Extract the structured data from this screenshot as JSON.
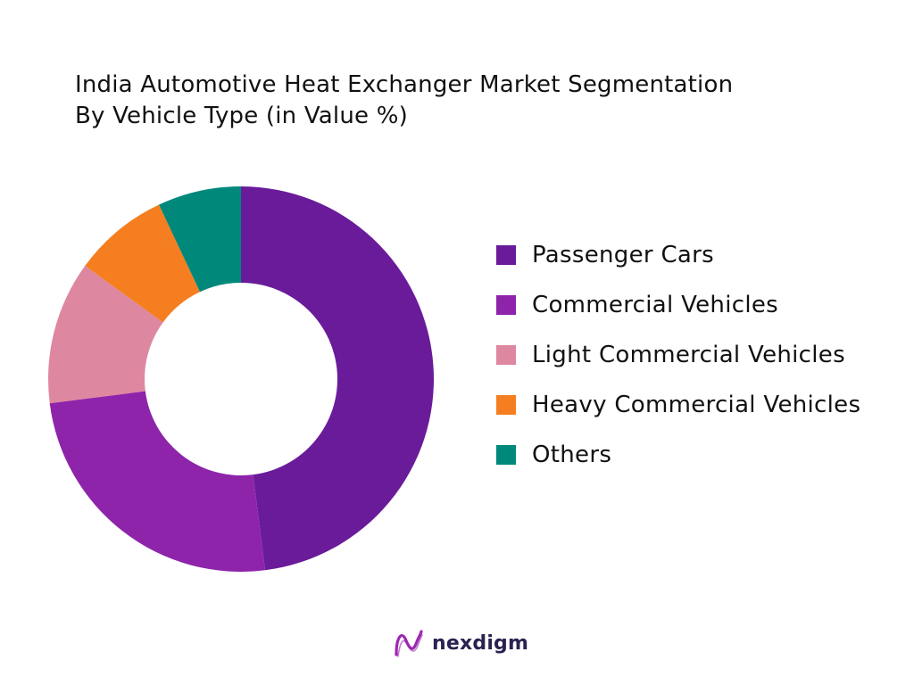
{
  "chart_data": {
    "type": "pie",
    "title": "India Automotive Heat Exchanger Market Segmentation",
    "subtitle": "By Vehicle Type (in Value %)",
    "legend_position": "right",
    "series": [
      {
        "name": "Passenger Cars",
        "value": 48,
        "color": "#6a1b9a"
      },
      {
        "name": "Commercial Vehicles",
        "value": 25,
        "color": "#8e24aa"
      },
      {
        "name": "Light Commercial Vehicles",
        "value": 12,
        "color": "#de87a0"
      },
      {
        "name": "Heavy Commercial Vehicles",
        "value": 8,
        "color": "#f57f20"
      },
      {
        "name": "Others",
        "value": 7,
        "color": "#00897b"
      }
    ]
  },
  "brand": {
    "name": "nexdigm",
    "logo_icon": "nexdigm-wave-logo-icon",
    "color": "#2b2250",
    "logo_color": "#9c27b0"
  }
}
